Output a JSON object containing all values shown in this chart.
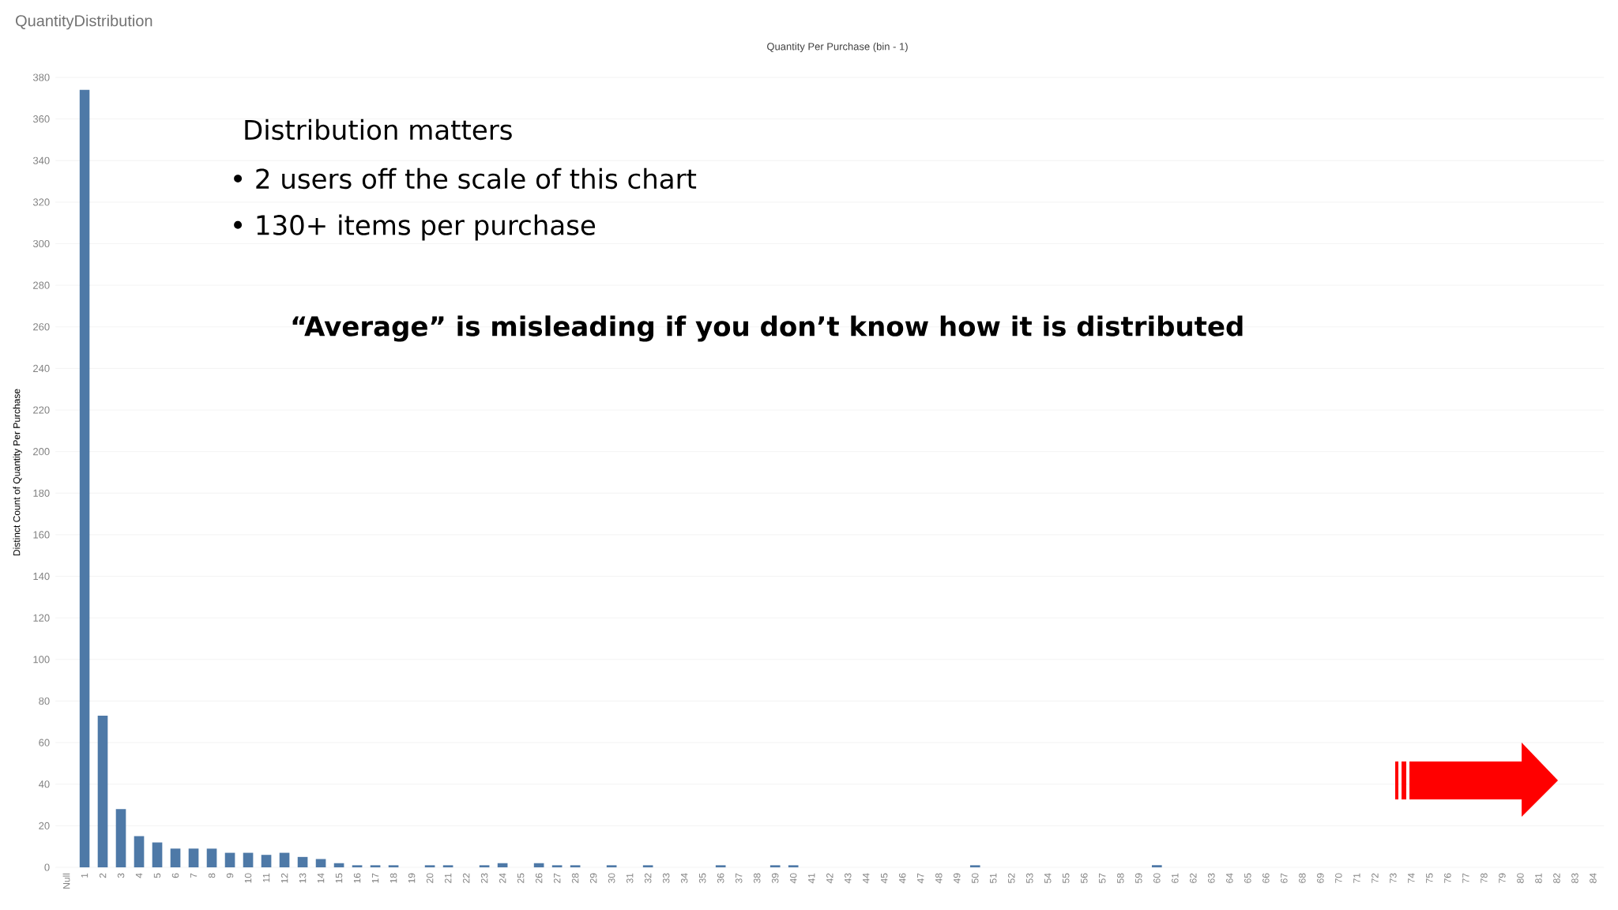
{
  "chart_data": {
    "type": "bar",
    "title": "QuantityDistribution",
    "subtitle": "Quantity Per Purchase (bin - 1)",
    "ylabel": "Distinct Count of Quantity Per Purchase",
    "annotations": [
      "Distribution matters",
      "•   2 users off the scale of this chart",
      "•   130+ items per purchase",
      "“Average” is misleading if you don’t know how it is distributed"
    ],
    "categories": [
      "Null",
      "1",
      "2",
      "3",
      "4",
      "5",
      "6",
      "7",
      "8",
      "9",
      "10",
      "11",
      "12",
      "13",
      "14",
      "15",
      "16",
      "17",
      "18",
      "19",
      "20",
      "21",
      "22",
      "23",
      "24",
      "25",
      "26",
      "27",
      "28",
      "29",
      "30",
      "31",
      "32",
      "33",
      "34",
      "35",
      "36",
      "37",
      "38",
      "39",
      "40",
      "41",
      "42",
      "43",
      "44",
      "45",
      "46",
      "47",
      "48",
      "49",
      "50",
      "51",
      "52",
      "53",
      "54",
      "55",
      "56",
      "57",
      "58",
      "59",
      "60",
      "61",
      "62",
      "63",
      "64",
      "65",
      "66",
      "67",
      "68",
      "69",
      "70",
      "71",
      "72",
      "73",
      "74",
      "75",
      "76",
      "77",
      "78",
      "79",
      "80",
      "81",
      "82",
      "83",
      "84"
    ],
    "values": [
      null,
      374,
      73,
      28,
      15,
      12,
      9,
      9,
      9,
      7,
      7,
      6,
      7,
      5,
      4,
      2,
      1,
      1,
      1,
      null,
      1,
      1,
      null,
      1,
      2,
      null,
      2,
      1,
      1,
      null,
      1,
      null,
      1,
      null,
      null,
      null,
      1,
      null,
      null,
      1,
      1,
      null,
      null,
      null,
      null,
      null,
      null,
      null,
      null,
      null,
      1,
      null,
      null,
      null,
      null,
      null,
      null,
      null,
      null,
      null,
      1,
      null,
      null,
      null,
      null,
      null,
      null,
      null,
      null,
      null,
      null,
      null,
      null,
      null,
      null,
      null,
      null,
      null,
      null,
      null,
      null,
      null,
      null,
      null,
      null
    ],
    "color": "#4e79a7",
    "ylim": [
      0,
      380
    ],
    "yticks": [
      0,
      20,
      40,
      60,
      80,
      100,
      120,
      140,
      160,
      180,
      200,
      220,
      240,
      260,
      280,
      300,
      320,
      340,
      360,
      380
    ],
    "grid": "y"
  }
}
